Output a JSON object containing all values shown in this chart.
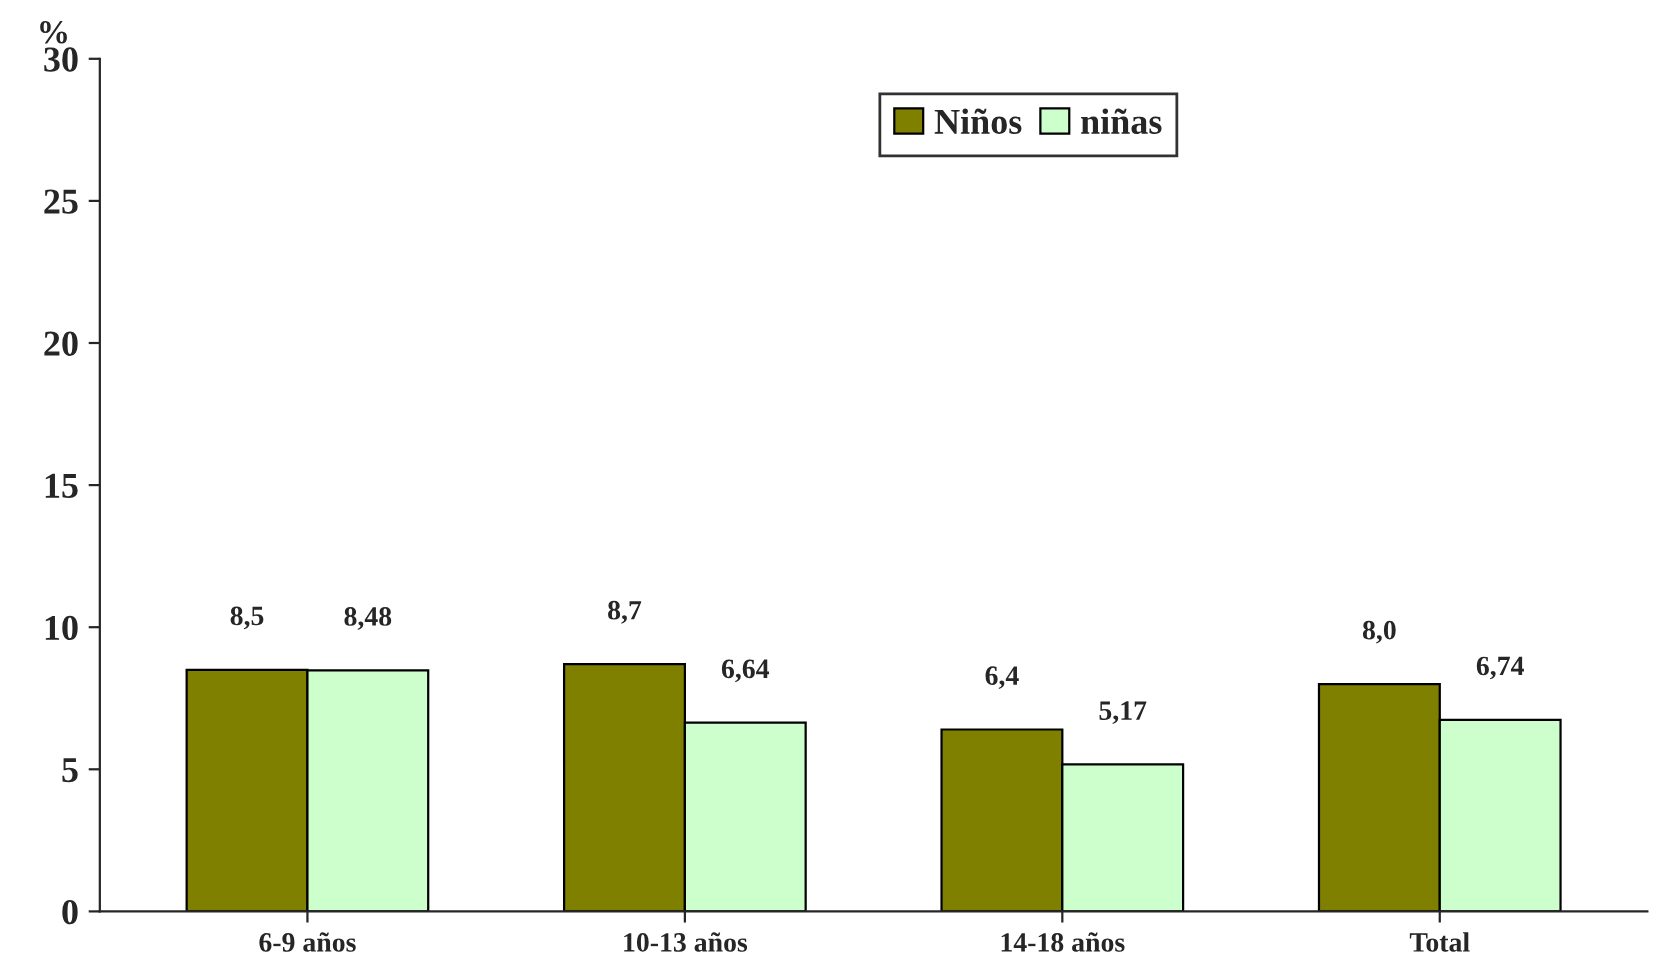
{
  "chart_data": {
    "type": "bar",
    "ylabel": "%",
    "categories": [
      "6-9 años",
      "10-13 años",
      "14-18 años",
      "Total"
    ],
    "series": [
      {
        "name": "Niños",
        "color": "#808000",
        "values": [
          8.5,
          8.7,
          6.4,
          8.0
        ],
        "value_labels": [
          "8,5",
          "8,7",
          "6,4",
          "8,0"
        ]
      },
      {
        "name": "niñas",
        "color": "#ccffcc",
        "values": [
          8.48,
          6.64,
          5.17,
          6.74
        ],
        "value_labels": [
          "8,48",
          "6,64",
          "5,17",
          "6,74"
        ]
      }
    ],
    "ylim": [
      0,
      30
    ],
    "yticks": [
      0,
      5,
      10,
      15,
      20,
      25,
      30
    ],
    "grid": false,
    "legend": "top"
  }
}
